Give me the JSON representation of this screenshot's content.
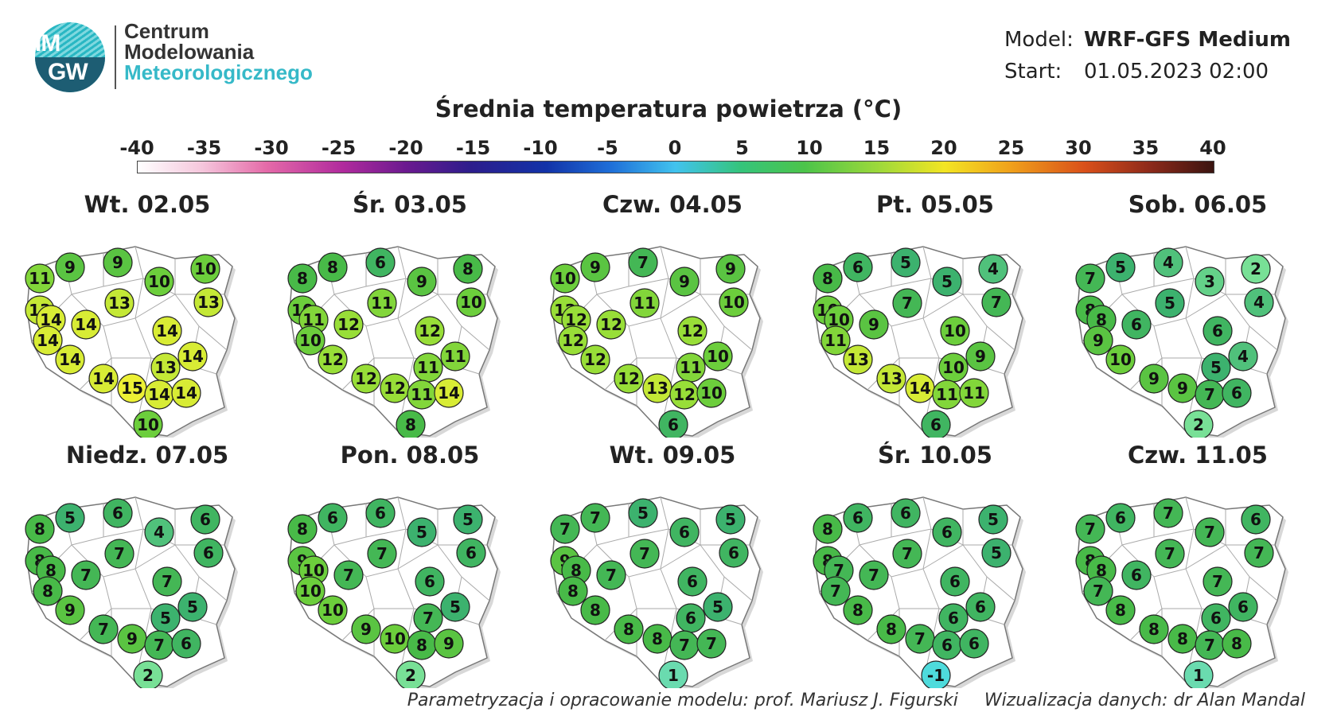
{
  "logo": {
    "mark_top": "IM",
    "mark_bottom": "GW",
    "line1": "Centrum",
    "line2": "Modelowania",
    "line3": "Meteorologicznego"
  },
  "meta": {
    "model_label": "Model:",
    "model_value": "WRF-GFS Medium",
    "start_label": "Start:",
    "start_value": "01.05.2023 02:00"
  },
  "title": "Średnia temperatura powietrza (°C)",
  "scale": {
    "ticks": [
      "-40",
      "-35",
      "-30",
      "-25",
      "-20",
      "-15",
      "-10",
      "-5",
      "0",
      "5",
      "10",
      "15",
      "20",
      "25",
      "30",
      "35",
      "40"
    ]
  },
  "panels": [
    {
      "day": "Wt. 02.05",
      "values": [
        11,
        9,
        9,
        10,
        10,
        13,
        13,
        14,
        13,
        14,
        14,
        14,
        14,
        13,
        14,
        14,
        15,
        14,
        14,
        10
      ]
    },
    {
      "day": "Śr. 03.05",
      "values": [
        8,
        8,
        6,
        9,
        8,
        10,
        11,
        11,
        10,
        10,
        12,
        12,
        12,
        11,
        11,
        12,
        12,
        11,
        14,
        8
      ]
    },
    {
      "day": "Czw. 04.05",
      "values": [
        10,
        9,
        7,
        9,
        9,
        12,
        11,
        12,
        10,
        12,
        12,
        12,
        12,
        11,
        10,
        12,
        13,
        12,
        10,
        6
      ]
    },
    {
      "day": "Pt. 05.05",
      "values": [
        8,
        6,
        5,
        5,
        4,
        10,
        7,
        10,
        7,
        11,
        9,
        10,
        13,
        10,
        9,
        13,
        14,
        11,
        11,
        6
      ]
    },
    {
      "day": "Sob. 06.05",
      "values": [
        7,
        5,
        4,
        3,
        2,
        8,
        5,
        8,
        4,
        9,
        6,
        6,
        10,
        5,
        4,
        9,
        9,
        7,
        6,
        2
      ]
    },
    {
      "day": "Niedz. 07.05",
      "values": [
        8,
        5,
        6,
        4,
        6,
        8,
        7,
        8,
        6,
        8,
        7,
        7,
        9,
        5,
        5,
        7,
        9,
        7,
        6,
        2
      ]
    },
    {
      "day": "Pon. 08.05",
      "values": [
        8,
        6,
        6,
        5,
        5,
        9,
        7,
        10,
        6,
        10,
        7,
        6,
        10,
        7,
        5,
        9,
        10,
        8,
        9,
        2
      ]
    },
    {
      "day": "Wt. 09.05",
      "values": [
        7,
        7,
        5,
        6,
        5,
        9,
        7,
        8,
        6,
        8,
        7,
        6,
        8,
        6,
        5,
        8,
        8,
        7,
        7,
        1
      ]
    },
    {
      "day": "Śr. 10.05",
      "values": [
        8,
        6,
        6,
        6,
        5,
        8,
        7,
        7,
        5,
        7,
        7,
        6,
        8,
        6,
        6,
        8,
        7,
        6,
        6,
        -1
      ]
    },
    {
      "day": "Czw. 11.05",
      "values": [
        7,
        6,
        7,
        7,
        6,
        8,
        7,
        8,
        7,
        7,
        6,
        7,
        8,
        6,
        6,
        8,
        8,
        7,
        8,
        1
      ]
    }
  ],
  "footer": {
    "left": "Parametryzacja i opracowanie modelu: prof. Mariusz J. Figurski",
    "right": "Wizualizacja danych: dr Alan Mandal"
  }
}
